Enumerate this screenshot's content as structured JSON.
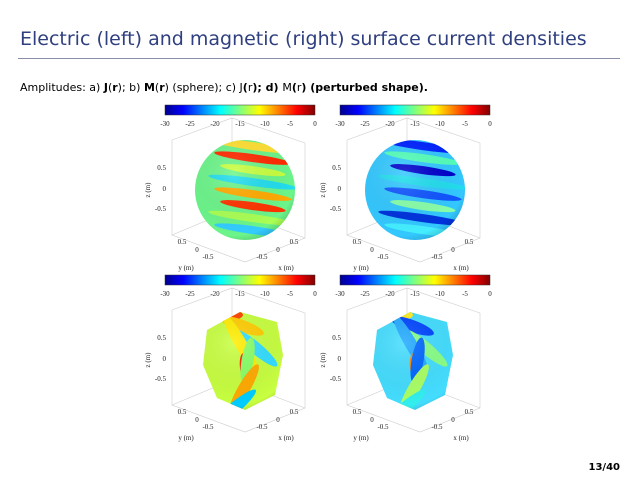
{
  "header": {
    "title": "Electric (left) and magnetic (right) surface current densities"
  },
  "caption": [
    "Amplitudes: a) ",
    "J",
    "(",
    "r",
    "); b) ",
    "M",
    "(",
    "r",
    ") (sphere); c) ",
    "J",
    "(",
    "r",
    "); d) ",
    "M",
    "(",
    "r",
    ") (perturbed shape)."
  ],
  "panels": [
    {
      "colorbar_ticks": [
        "-30",
        "-25",
        "-20",
        "-15",
        "-10",
        "-5",
        "0"
      ],
      "z_label": "z (m)",
      "z_ticks": [
        "0.5",
        "0",
        "-0.5"
      ],
      "y_label": "y (m)",
      "y_ticks": [
        "0.5",
        "0",
        "-0.5"
      ],
      "x_label": "x (m)",
      "x_ticks": [
        "-0.5",
        "0",
        "0.5"
      ]
    },
    {
      "colorbar_ticks": [
        "-30",
        "-25",
        "-20",
        "-15",
        "-10",
        "-5",
        "0"
      ],
      "z_label": "z (m)",
      "z_ticks": [
        "0.5",
        "0",
        "-0.5"
      ],
      "y_label": "y (m)",
      "y_ticks": [
        "0.5",
        "0",
        "-0.5"
      ],
      "x_label": "x (m)",
      "x_ticks": [
        "-0.5",
        "0",
        "0.5"
      ]
    },
    {
      "colorbar_ticks": [
        "-30",
        "-25",
        "-20",
        "-15",
        "-10",
        "-5",
        "0"
      ],
      "z_label": "z (m)",
      "z_ticks": [
        "0.5",
        "0",
        "-0.5"
      ],
      "y_label": "y (m)",
      "y_ticks": [
        "0.5",
        "0",
        "-0.5"
      ],
      "x_label": "x (m)",
      "x_ticks": [
        "-0.5",
        "0",
        "0.5"
      ]
    },
    {
      "colorbar_ticks": [
        "-30",
        "-25",
        "-20",
        "-15",
        "-10",
        "-5",
        "0"
      ],
      "z_label": "z (m)",
      "z_ticks": [
        "0.5",
        "0",
        "-0.5"
      ],
      "y_label": "y (m)",
      "y_ticks": [
        "0.5",
        "0",
        "-0.5"
      ],
      "x_label": "x (m)",
      "x_ticks": [
        "-0.5",
        "0",
        "0.5"
      ]
    }
  ],
  "footer": {
    "page": "13/40"
  }
}
